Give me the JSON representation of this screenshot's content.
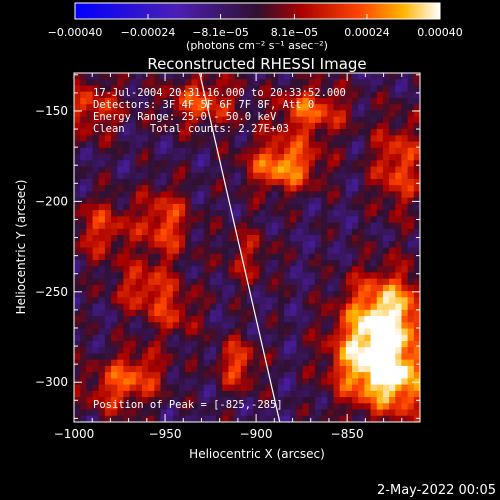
{
  "chart_data": {
    "type": "heatmap",
    "title": "Reconstructed RHESSI Image",
    "xlabel": "Heliocentric X (arcsec)",
    "ylabel": "Heliocentric Y (arcsec)",
    "xlim": [
      -1000,
      -810
    ],
    "ylim": [
      -322,
      -129
    ],
    "xticks": [
      -1000,
      -950,
      -900,
      -850
    ],
    "yticks": [
      -150,
      -200,
      -250,
      -300
    ],
    "x_tick_labels": [
      "−1000",
      "−950",
      "−900",
      "−850"
    ],
    "y_tick_labels": [
      "−150",
      "−200",
      "−250",
      "−300"
    ],
    "colorbar": {
      "range": [
        -0.0004,
        0.0004
      ],
      "tick_values": [
        -0.0004,
        -0.00024,
        -8.1e-05,
        8.1e-05,
        0.00024,
        0.0004
      ],
      "tick_labels": [
        "−0.00040",
        "−0.00024",
        "−8.1e−05",
        "8.1e−05",
        "0.00024",
        "0.00040"
      ],
      "units_label": "(photons cm⁻² s⁻¹ asec⁻²)"
    },
    "annotations": [
      "17-Jul-2004 20:31:16.000 to 20:33:52.000",
      "Detectors: 3F 4F 5F 6F 7F 8F, Att 0",
      "Energy Range: 25.0 - 50.0 keV",
      "Clean    Total counts: 2.27E+03"
    ],
    "peak_label": "Position of Peak = [-825,-285]",
    "peak": [
      -825,
      -285
    ],
    "limb_line": [
      [
        -931,
        -129
      ],
      [
        -887,
        -322
      ]
    ],
    "sources": [
      {
        "x": -828,
        "y": -262,
        "amp": 0.0004,
        "sx": 16,
        "sy": 16
      },
      {
        "x": -840,
        "y": -290,
        "amp": 0.00036,
        "sx": 14,
        "sy": 16
      },
      {
        "x": -820,
        "y": -300,
        "amp": 0.0003,
        "sx": 12,
        "sy": 14
      },
      {
        "x": -885,
        "y": -180,
        "amp": 0.00034,
        "sx": 14,
        "sy": 10
      },
      {
        "x": -930,
        "y": -145,
        "amp": 0.00024,
        "sx": 14,
        "sy": 10
      },
      {
        "x": -870,
        "y": -150,
        "amp": 0.00026,
        "sx": 14,
        "sy": 10
      },
      {
        "x": -950,
        "y": -212,
        "amp": 0.00024,
        "sx": 10,
        "sy": 14
      },
      {
        "x": -962,
        "y": -248,
        "amp": 0.0002,
        "sx": 12,
        "sy": 10
      },
      {
        "x": -985,
        "y": -215,
        "amp": 0.0002,
        "sx": 12,
        "sy": 12
      },
      {
        "x": -990,
        "y": -148,
        "amp": 0.0002,
        "sx": 12,
        "sy": 12
      },
      {
        "x": -822,
        "y": -180,
        "amp": 0.00024,
        "sx": 10,
        "sy": 18
      },
      {
        "x": -965,
        "y": -295,
        "amp": 0.0002,
        "sx": 12,
        "sy": 10
      },
      {
        "x": -910,
        "y": -290,
        "amp": 0.00024,
        "sx": 8,
        "sy": 10
      },
      {
        "x": -980,
        "y": -305,
        "amp": 0.00016,
        "sx": 12,
        "sy": 10
      },
      {
        "x": -945,
        "y": -262,
        "amp": 0.00016,
        "sx": 10,
        "sy": 10
      },
      {
        "x": -905,
        "y": -230,
        "amp": 0.00014,
        "sx": 10,
        "sy": 12
      }
    ]
  },
  "footer_date": "2-May-2022 00:05"
}
